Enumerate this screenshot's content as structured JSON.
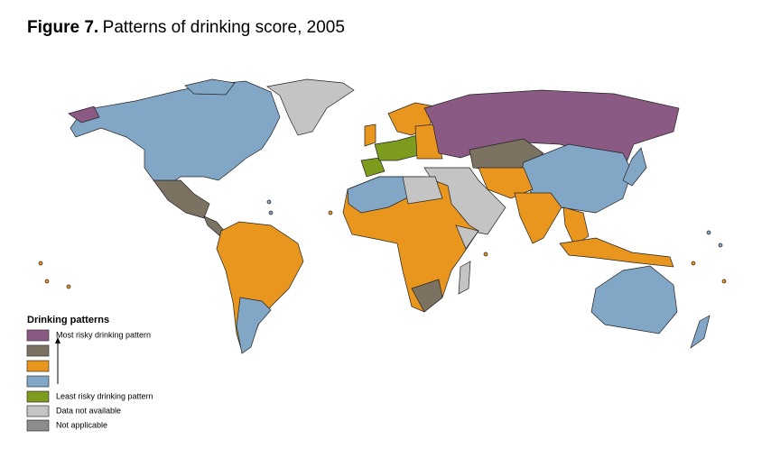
{
  "header": {
    "figure_label": "Figure 7.",
    "title": "Patterns of drinking score, 2005"
  },
  "legend": {
    "title": "Drinking patterns",
    "items": [
      {
        "color": "#8b5a84",
        "label": "Most risky drinking pattern"
      },
      {
        "color": "#7b7262"
      },
      {
        "color": "#e8961e"
      },
      {
        "color": "#82a6c6"
      },
      {
        "color": "#7d9b1c",
        "label": "Least risky drinking pattern"
      },
      {
        "color": "#c4c4c4",
        "label": "Data not available"
      },
      {
        "color": "#8c8c8c",
        "label": "Not applicable"
      }
    ]
  }
}
